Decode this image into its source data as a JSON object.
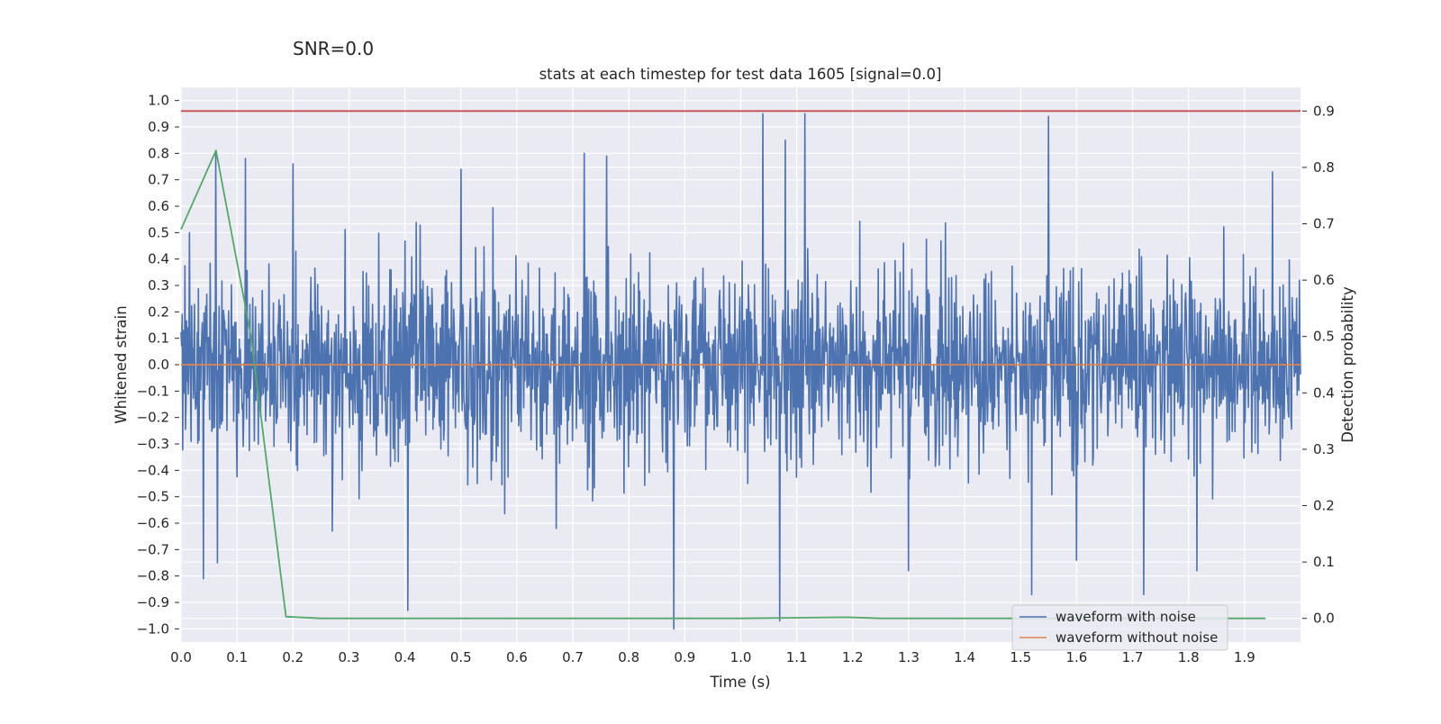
{
  "figure": {
    "suptitle": "SNR=0.0"
  },
  "chart_data": {
    "type": "line",
    "title": "stats at each timestep for test data 1605 [signal=0.0]",
    "xlabel": "Time (s)",
    "ylabel_left": "Whitened strain",
    "ylabel_right": "Detection probability",
    "xlim": [
      0.0,
      2.0
    ],
    "ylim_left": [
      -1.05,
      1.05
    ],
    "ylim_right": [
      -0.042,
      0.942
    ],
    "xticks": [
      "0.0",
      "0.1",
      "0.2",
      "0.3",
      "0.4",
      "0.5",
      "0.6",
      "0.7",
      "0.8",
      "0.9",
      "1.0",
      "1.1",
      "1.2",
      "1.3",
      "1.4",
      "1.5",
      "1.6",
      "1.7",
      "1.8",
      "1.9"
    ],
    "yticks_left": [
      "1.0",
      "0.9",
      "0.8",
      "0.7",
      "0.6",
      "0.5",
      "0.4",
      "0.3",
      "0.2",
      "0.1",
      "0.0",
      "-0.1",
      "-0.2",
      "-0.3",
      "-0.4",
      "-0.5",
      "-0.6",
      "-0.7",
      "-0.8",
      "-0.9",
      "-1.0"
    ],
    "yticks_right": [
      "0.9",
      "0.8",
      "0.7",
      "0.6",
      "0.5",
      "0.4",
      "0.3",
      "0.2",
      "0.1",
      "0.0"
    ],
    "grid": true,
    "legend_position": "lower-right",
    "colors": {
      "background": "#eaeaf2",
      "grid": "#ffffff",
      "noisy": "#4c72b0",
      "clean": "#dd8452",
      "probability": "#55a868",
      "threshold": "#c44e52"
    },
    "series": [
      {
        "name": "waveform with noise",
        "axis": "left",
        "style": "noise",
        "n_points": 2000,
        "seed": 1605,
        "sigma": 0.26,
        "notable_peaks": [
          {
            "x": 0.015,
            "y": 0.5
          },
          {
            "x": 0.0625,
            "y": 0.8
          },
          {
            "x": 0.115,
            "y": 0.78
          },
          {
            "x": 0.2,
            "y": 0.76
          },
          {
            "x": 0.5,
            "y": 0.74
          },
          {
            "x": 0.72,
            "y": 0.8
          },
          {
            "x": 0.76,
            "y": 0.79
          },
          {
            "x": 1.04,
            "y": 0.95
          },
          {
            "x": 1.08,
            "y": 0.85
          },
          {
            "x": 1.115,
            "y": 0.95
          },
          {
            "x": 1.55,
            "y": 0.94
          },
          {
            "x": 1.95,
            "y": 0.73
          },
          {
            "x": 0.04,
            "y": -0.81
          },
          {
            "x": 0.065,
            "y": -0.75
          },
          {
            "x": 0.405,
            "y": -0.93
          },
          {
            "x": 0.88,
            "y": -1.0
          },
          {
            "x": 1.07,
            "y": -0.97
          },
          {
            "x": 1.52,
            "y": -0.87
          },
          {
            "x": 1.72,
            "y": -0.87
          },
          {
            "x": 1.815,
            "y": -0.78
          },
          {
            "x": 1.6,
            "y": -0.74
          },
          {
            "x": 1.3,
            "y": -0.78
          },
          {
            "x": 0.67,
            "y": -0.62
          },
          {
            "x": 0.27,
            "y": -0.63
          }
        ]
      },
      {
        "name": "waveform without noise",
        "axis": "left",
        "x": [
          0.0,
          2.0
        ],
        "y": [
          0.0,
          0.0
        ]
      },
      {
        "axis": "right",
        "x": [
          0.0,
          0.0625,
          0.125,
          0.1875,
          0.25,
          0.5,
          1.0,
          1.19,
          1.25,
          1.5,
          1.75,
          1.9375
        ],
        "y": [
          0.69,
          0.83,
          0.5,
          0.003,
          0.0,
          0.0,
          0.0,
          0.002,
          0.0,
          0.0,
          0.0,
          0.0
        ]
      },
      {
        "axis": "right",
        "style": "threshold",
        "x": [
          0.0,
          2.0
        ],
        "y": [
          0.9,
          0.9
        ]
      }
    ]
  }
}
